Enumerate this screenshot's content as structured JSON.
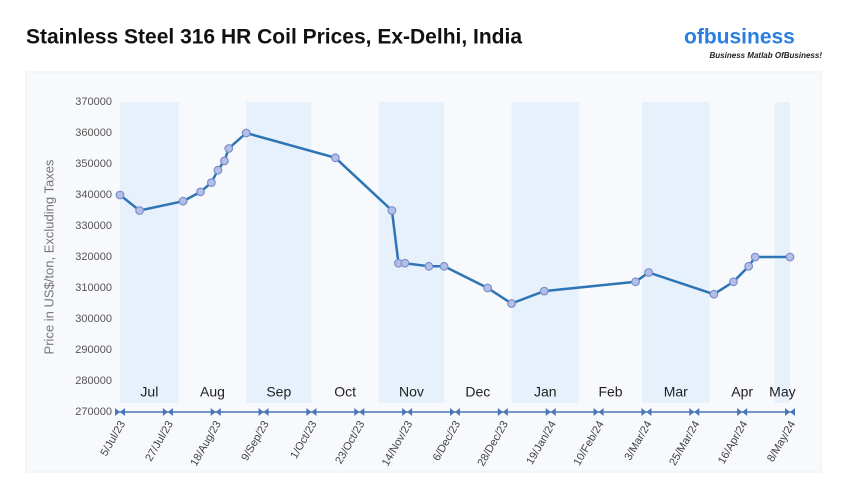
{
  "chart_data": {
    "type": "line",
    "title": "Stainless Steel 316 HR Coil Prices, Ex-Delhi, India",
    "brand": {
      "name": "ofbusiness",
      "tagline": "Business Matlab OfBusiness!"
    },
    "y_label": "Price in US$/ton, Excluding Taxes",
    "x": [
      "2023-07-05",
      "2023-07-14",
      "2023-08-03",
      "2023-08-11",
      "2023-08-16",
      "2023-08-19",
      "2023-08-22",
      "2023-08-24",
      "2023-09-01",
      "2023-10-12",
      "2023-11-07",
      "2023-11-10",
      "2023-11-13",
      "2023-11-24",
      "2023-12-01",
      "2023-12-21",
      "2024-01-01",
      "2024-01-16",
      "2024-02-27",
      "2024-03-04",
      "2024-04-03",
      "2024-04-12",
      "2024-04-19",
      "2024-04-22",
      "2024-05-08"
    ],
    "series": [
      {
        "name": "Price",
        "color": "#2e75b6",
        "values": [
          340000,
          335000,
          338000,
          341000,
          344000,
          348000,
          351000,
          355000,
          360000,
          352000,
          335000,
          318000,
          318000,
          317000,
          317000,
          310000,
          305000,
          309000,
          312000,
          315000,
          308000,
          312000,
          317000,
          320000,
          320000
        ]
      }
    ],
    "xlim": [
      "2023-07-05",
      "2024-05-08"
    ],
    "xticks": [
      {
        "value": "2023-07-05",
        "label": "5/Jul/23"
      },
      {
        "value": "2023-07-27",
        "label": "27/Jul/23"
      },
      {
        "value": "2023-08-18",
        "label": "18/Aug/23"
      },
      {
        "value": "2023-09-09",
        "label": "9/Sep/23"
      },
      {
        "value": "2023-10-01",
        "label": "1/Oct/23"
      },
      {
        "value": "2023-10-23",
        "label": "23/Oct/23"
      },
      {
        "value": "2023-11-14",
        "label": "14/Nov/23"
      },
      {
        "value": "2023-12-06",
        "label": "6/Dec/23"
      },
      {
        "value": "2023-12-28",
        "label": "28/Dec/23"
      },
      {
        "value": "2024-01-19",
        "label": "19/Jan/24"
      },
      {
        "value": "2024-02-10",
        "label": "10/Feb/24"
      },
      {
        "value": "2024-03-03",
        "label": "3/Mar/24"
      },
      {
        "value": "2024-03-25",
        "label": "25/Mar/24"
      },
      {
        "value": "2024-04-16",
        "label": "16/Apr/24"
      },
      {
        "value": "2024-05-08",
        "label": "8/May/24"
      }
    ],
    "ylim": [
      270000,
      370000
    ],
    "yticks": [
      270000,
      280000,
      290000,
      300000,
      310000,
      320000,
      330000,
      340000,
      350000,
      360000,
      370000
    ],
    "months": [
      {
        "label": "Jul",
        "start": "2023-07-01"
      },
      {
        "label": "Aug",
        "start": "2023-08-01"
      },
      {
        "label": "Sep",
        "start": "2023-09-01"
      },
      {
        "label": "Oct",
        "start": "2023-10-01"
      },
      {
        "label": "Nov",
        "start": "2023-11-01"
      },
      {
        "label": "Dec",
        "start": "2023-12-01"
      },
      {
        "label": "Jan",
        "start": "2024-01-01"
      },
      {
        "label": "Feb",
        "start": "2024-02-01"
      },
      {
        "label": "Mar",
        "start": "2024-03-01"
      },
      {
        "label": "Apr",
        "start": "2024-04-01"
      },
      {
        "label": "May",
        "start": "2024-05-01"
      }
    ]
  }
}
